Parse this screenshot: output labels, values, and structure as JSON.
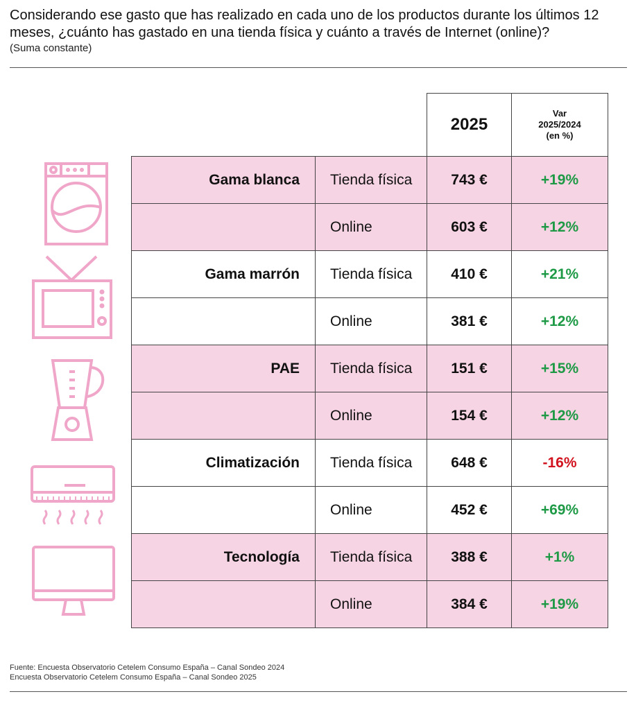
{
  "title": "Considerando ese gasto que has realizado en cada uno de los productos durante los últimos 12 meses, ¿cuánto has gastado en una tienda física y cuánto a través de Internet (online)?",
  "subtitle": "(Suma constante)",
  "colors": {
    "pink_fill": "#f7d4e3",
    "icon_pink": "#f0a6c8",
    "positive": "#1e9a46",
    "negative": "#d1141f"
  },
  "chart_data": {
    "type": "table",
    "columns": [
      "",
      "",
      "2025",
      "Var 2025/2024 (en %)"
    ],
    "header": {
      "year": "2025",
      "var_line1": "Var",
      "var_line2": "2025/2024",
      "var_line3": "(en %)"
    },
    "rows": [
      {
        "category": "Gama blanca",
        "channel": "Tienda física",
        "value": "743 €",
        "var": "+19%"
      },
      {
        "category": "",
        "channel": "Online",
        "value": "603 €",
        "var": "+12%"
      },
      {
        "category": "Gama marrón",
        "channel": "Tienda física",
        "value": "410 €",
        "var": "+21%"
      },
      {
        "category": "",
        "channel": "Online",
        "value": "381 €",
        "var": "+12%"
      },
      {
        "category": "PAE",
        "channel": "Tienda física",
        "value": "151 €",
        "var": "+15%"
      },
      {
        "category": "",
        "channel": "Online",
        "value": "154 €",
        "var": "+12%"
      },
      {
        "category": "Climatización",
        "channel": "Tienda física",
        "value": "648 €",
        "var": "-16%"
      },
      {
        "category": "",
        "channel": "Online",
        "value": "452 €",
        "var": "+69%"
      },
      {
        "category": "Tecnología",
        "channel": "Tienda física",
        "value": "388 €",
        "var": "+1%"
      },
      {
        "category": "",
        "channel": "Online",
        "value": "384 €",
        "var": "+19%"
      }
    ]
  },
  "source": {
    "line1": "Fuente: Encuesta Observatorio Cetelem Consumo España – Canal Sondeo 2024",
    "line2": "Encuesta Observatorio Cetelem Consumo España – Canal Sondeo 2025"
  }
}
